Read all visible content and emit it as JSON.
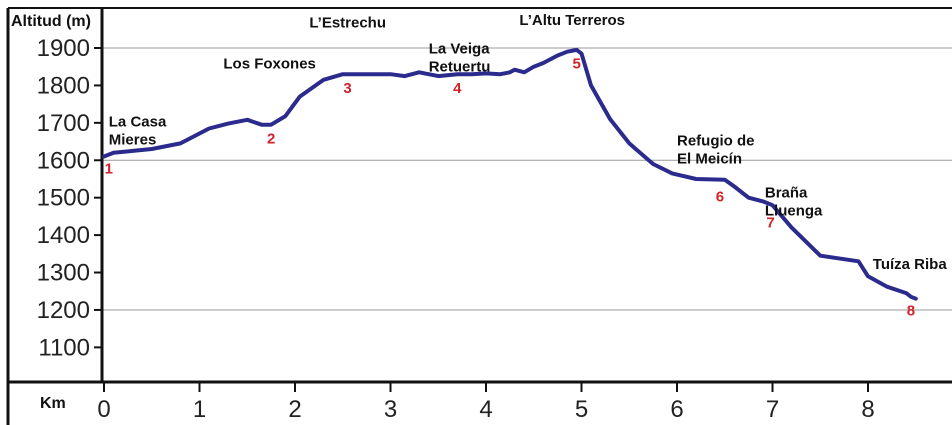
{
  "chart_data": {
    "type": "line",
    "ylabel": "Altitud (m)",
    "xlabel": "Km",
    "xlim": [
      0,
      8.9
    ],
    "ylim": [
      1000,
      2000
    ],
    "x_ticks": [
      0,
      1,
      2,
      3,
      4,
      5,
      6,
      7,
      8
    ],
    "y_ticks": [
      1100,
      1200,
      1300,
      1400,
      1500,
      1600,
      1700,
      1800,
      1900
    ],
    "gridlines_y": [
      1200,
      1600,
      1900
    ],
    "line_color": "#2b2b8e",
    "waypoint_color": "#d2232a",
    "x": [
      0,
      0.1,
      0.3,
      0.5,
      0.8,
      1.1,
      1.3,
      1.5,
      1.65,
      1.75,
      1.9,
      2.05,
      2.3,
      2.5,
      2.8,
      3.0,
      3.15,
      3.3,
      3.5,
      3.7,
      3.85,
      4.0,
      4.15,
      4.25,
      4.3,
      4.4,
      4.5,
      4.6,
      4.75,
      4.85,
      4.95,
      5.0,
      5.1,
      5.3,
      5.5,
      5.75,
      5.95,
      6.2,
      6.5,
      6.6,
      6.75,
      6.9,
      7.0,
      7.2,
      7.5,
      7.9,
      8.0,
      8.2,
      8.4,
      8.45,
      8.5
    ],
    "y": [
      1610,
      1620,
      1625,
      1630,
      1645,
      1685,
      1698,
      1708,
      1695,
      1695,
      1718,
      1770,
      1815,
      1830,
      1830,
      1830,
      1825,
      1835,
      1825,
      1830,
      1830,
      1832,
      1830,
      1835,
      1842,
      1835,
      1850,
      1860,
      1880,
      1890,
      1895,
      1885,
      1800,
      1710,
      1645,
      1590,
      1565,
      1550,
      1548,
      1530,
      1500,
      1490,
      1480,
      1420,
      1345,
      1330,
      1290,
      1262,
      1245,
      1235,
      1230
    ],
    "places": [
      {
        "lines": [
          "La Casa",
          "Mieres"
        ],
        "anchor_x": 0.05,
        "anchor_y": 1690
      },
      {
        "lines": [
          "Los Foxones"
        ],
        "anchor_x": 1.25,
        "anchor_y": 1845
      },
      {
        "lines": [
          "L’Estrechu"
        ],
        "anchor_x": 2.15,
        "anchor_y": 1955
      },
      {
        "lines": [
          "La Veiga",
          "Retuertu"
        ],
        "anchor_x": 3.4,
        "anchor_y": 1885
      },
      {
        "lines": [
          "L’Altu Terreros"
        ],
        "anchor_x": 4.35,
        "anchor_y": 1962
      },
      {
        "lines": [
          "Refugio de",
          "El Meicín"
        ],
        "anchor_x": 6.0,
        "anchor_y": 1640
      },
      {
        "lines": [
          "Braña",
          "Lluenga"
        ],
        "anchor_x": 6.92,
        "anchor_y": 1500
      },
      {
        "lines": [
          "Tuíza Riba"
        ],
        "anchor_x": 8.05,
        "anchor_y": 1310
      }
    ],
    "waypoints": [
      {
        "label": "1",
        "x": 0.05,
        "y": 1565
      },
      {
        "label": "2",
        "x": 1.75,
        "y": 1645
      },
      {
        "label": "3",
        "x": 2.55,
        "y": 1780
      },
      {
        "label": "4",
        "x": 3.7,
        "y": 1780
      },
      {
        "label": "5",
        "x": 4.95,
        "y": 1845
      },
      {
        "label": "6",
        "x": 6.45,
        "y": 1490
      },
      {
        "label": "7",
        "x": 6.98,
        "y": 1420
      },
      {
        "label": "8",
        "x": 8.45,
        "y": 1185
      }
    ]
  }
}
